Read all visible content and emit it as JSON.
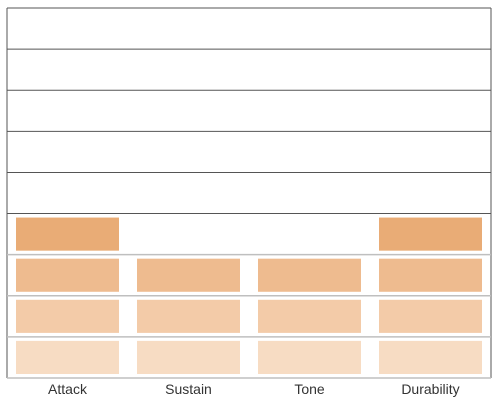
{
  "chart_data": {
    "type": "bar",
    "subtype": "stacked-blocks",
    "categories": [
      "Attack",
      "Sustain",
      "Tone",
      "Durability"
    ],
    "values": [
      4,
      3,
      3,
      4
    ],
    "ylim": [
      0,
      9
    ],
    "grid": true,
    "legend": "none",
    "colors": {
      "level_1": "#f7dcc3",
      "level_2": "#f3cba8",
      "level_3": "#eebb8f",
      "level_4": "#e9ac76",
      "grid_line": "#bfbfbf",
      "frame": "#555555"
    }
  }
}
